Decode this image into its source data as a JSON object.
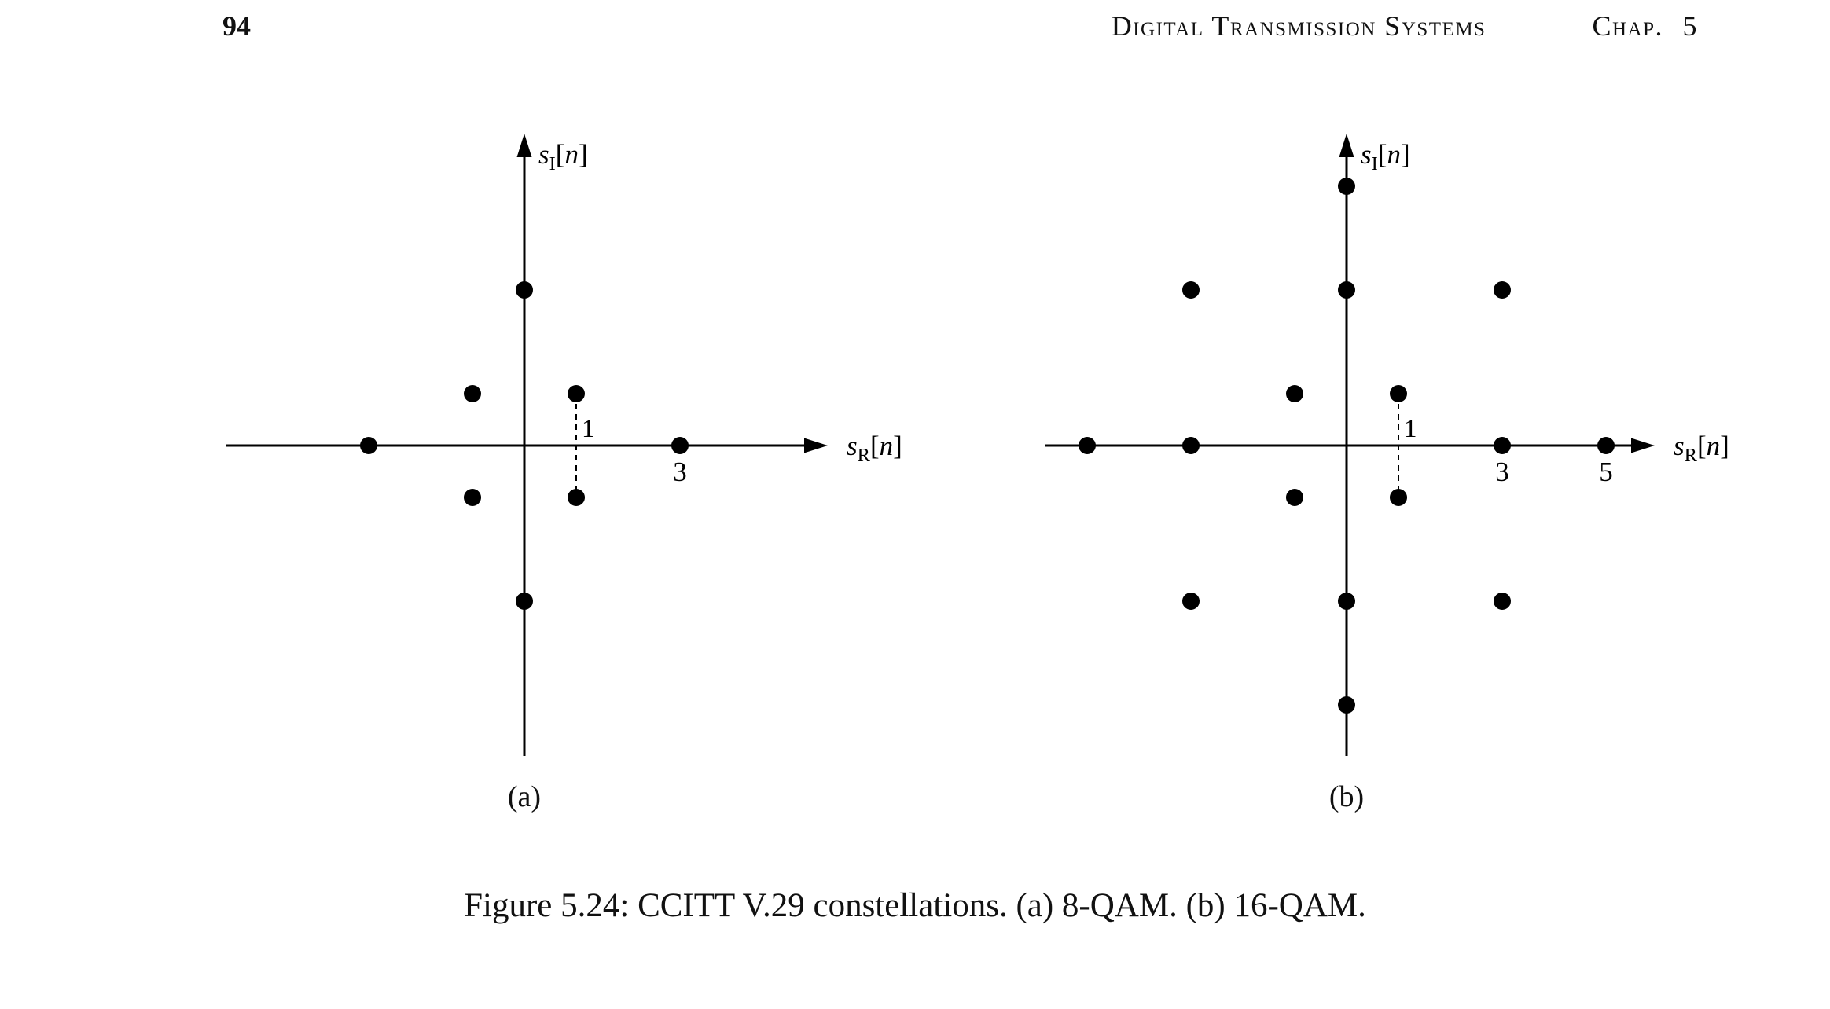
{
  "page": {
    "page_number": "94",
    "running_title": "Digital Transmission Systems",
    "chapter": "Chap. 5",
    "caption": "Figure 5.24: CCITT V.29 constellations. (a) 8-QAM. (b) 16-QAM."
  },
  "chart_data": [
    {
      "type": "scatter",
      "title": "CCITT V.29 8-QAM constellation",
      "sub_caption": "(a)",
      "xlabel": {
        "v": "s",
        "sub": "R",
        "arg": "n"
      },
      "ylabel": {
        "v": "s",
        "sub": "I",
        "arg": "n"
      },
      "xlim": [
        -5.5,
        5.5
      ],
      "ylim": [
        -6,
        6
      ],
      "grid": false,
      "points": [
        [
          1,
          1
        ],
        [
          -1,
          1
        ],
        [
          -1,
          -1
        ],
        [
          1,
          -1
        ],
        [
          3,
          0
        ],
        [
          0,
          3
        ],
        [
          -3,
          0
        ],
        [
          0,
          -3
        ]
      ],
      "x_ticks": [
        {
          "value": 3,
          "label": "3"
        }
      ],
      "dashed_line": {
        "from": [
          1,
          1
        ],
        "to": [
          1,
          -1
        ],
        "label": "1"
      }
    },
    {
      "type": "scatter",
      "title": "CCITT V.29 16-QAM constellation",
      "sub_caption": "(b)",
      "xlabel": {
        "v": "s",
        "sub": "R",
        "arg": "n"
      },
      "ylabel": {
        "v": "s",
        "sub": "I",
        "arg": "n"
      },
      "xlim": [
        -6,
        6
      ],
      "ylim": [
        -6,
        6
      ],
      "grid": false,
      "points": [
        [
          1,
          1
        ],
        [
          -1,
          1
        ],
        [
          -1,
          -1
        ],
        [
          1,
          -1
        ],
        [
          3,
          0
        ],
        [
          0,
          3
        ],
        [
          -3,
          0
        ],
        [
          0,
          -3
        ],
        [
          5,
          0
        ],
        [
          0,
          5
        ],
        [
          -5,
          0
        ],
        [
          0,
          -5
        ],
        [
          3,
          3
        ],
        [
          -3,
          3
        ],
        [
          -3,
          -3
        ],
        [
          3,
          -3
        ]
      ],
      "x_ticks": [
        {
          "value": 3,
          "label": "3"
        },
        {
          "value": 5,
          "label": "5"
        }
      ],
      "dashed_line": {
        "from": [
          1,
          1
        ],
        "to": [
          1,
          -1
        ],
        "label": "1"
      }
    }
  ]
}
